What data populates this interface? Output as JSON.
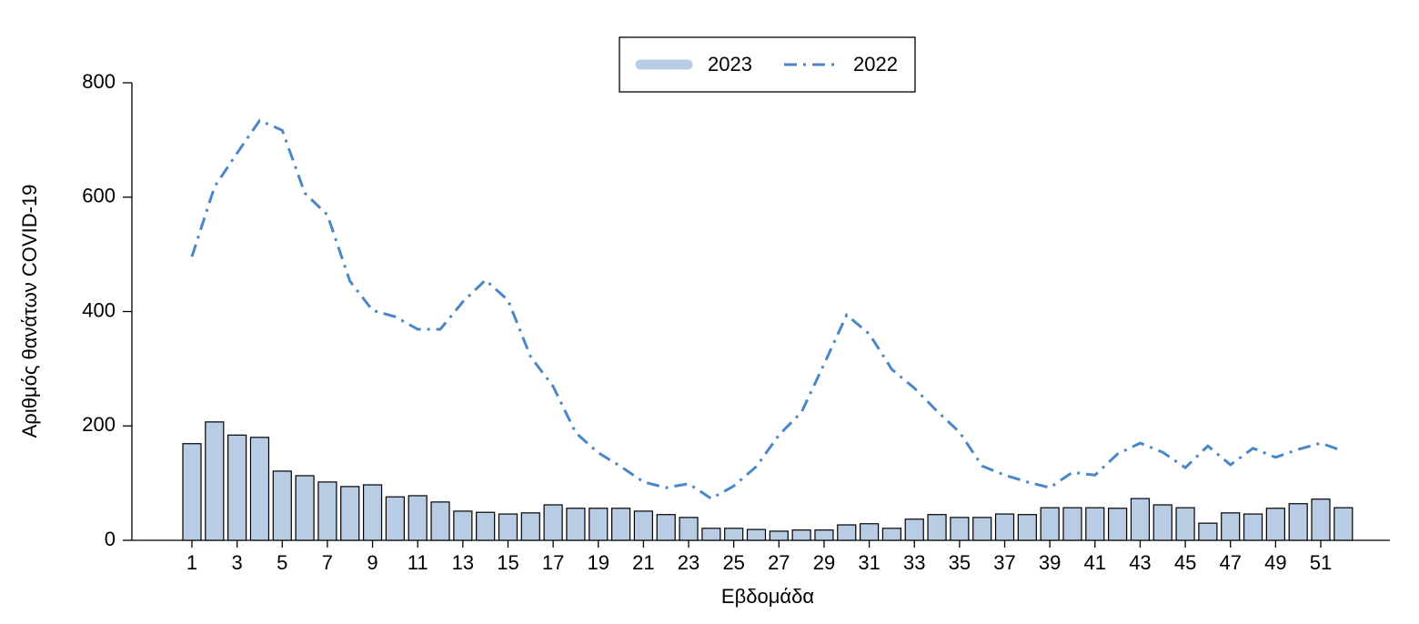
{
  "chart_data": {
    "type": "bar",
    "x_label": "Εβδομάδα",
    "y_label": "Αριθμός θανάτων COVID-19",
    "categories": [
      1,
      null,
      3,
      null,
      5,
      null,
      7,
      null,
      9,
      null,
      11,
      null,
      13,
      null,
      15,
      null,
      17,
      null,
      19,
      null,
      21,
      null,
      23,
      null,
      25,
      null,
      27,
      null,
      29,
      null,
      31,
      null,
      33,
      null,
      35,
      null,
      37,
      null,
      39,
      null,
      41,
      null,
      43,
      null,
      45,
      null,
      47,
      null,
      49,
      null,
      51,
      null
    ],
    "series": [
      {
        "name": "2023",
        "type": "bar",
        "color": "#b8cce4",
        "values": [
          169,
          207,
          184,
          180,
          121,
          113,
          102,
          94,
          97,
          76,
          78,
          67,
          51,
          49,
          46,
          48,
          62,
          56,
          56,
          56,
          51,
          45,
          40,
          21,
          21,
          19,
          16,
          18,
          18,
          27,
          29,
          21,
          37,
          45,
          40,
          40,
          46,
          45,
          57,
          57,
          57,
          56,
          73,
          62,
          57,
          30,
          48,
          46,
          56,
          64,
          72,
          57
        ]
      },
      {
        "name": "2022",
        "type": "line",
        "color": "#4a86c8",
        "values": [
          496,
          618,
          677,
          734,
          717,
          607,
          569,
          453,
          402,
          391,
          369,
          369,
          417,
          455,
          420,
          321,
          269,
          188,
          153,
          129,
          102,
          92,
          99,
          73,
          95,
          129,
          184,
          224,
          308,
          394,
          361,
          299,
          266,
          226,
          189,
          130,
          114,
          102,
          92,
          119,
          114,
          151,
          170,
          154,
          127,
          165,
          132,
          161,
          145,
          159,
          170,
          156
        ]
      }
    ],
    "ylim": [
      0,
      800
    ],
    "yticks": [
      0,
      200,
      400,
      600,
      800
    ],
    "grid": false,
    "legend": "top"
  }
}
